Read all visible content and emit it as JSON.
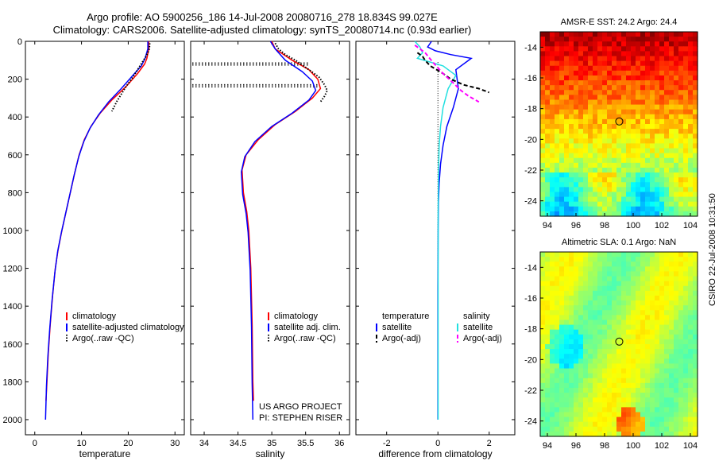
{
  "header": {
    "title_line1": "Argo profile: AO 5900256_186 14-Jul-2008 20080716_278 18.834S 99.027E",
    "title_line2": "Climatology: CARS2006. Satellite-adjusted climatology: synTS_20080714.nc (0.93d earlier)"
  },
  "stamp": "CSIRO 22-Jul-2008 10:31:50",
  "colors": {
    "climatology": "#ff0000",
    "satellite": "#0000ff",
    "argo": "#000000",
    "sal_satellite": "#22e0e0",
    "sal_argo": "#ff00ff"
  },
  "chart_data": [
    {
      "type": "line",
      "xlabel": "temperature",
      "ylabel": "",
      "xlim": [
        -2,
        32
      ],
      "ylim": [
        2080,
        0
      ],
      "xticks": [
        0,
        10,
        20,
        30
      ],
      "yticks": [
        0,
        200,
        400,
        600,
        800,
        1000,
        1200,
        1400,
        1600,
        1800,
        2000
      ],
      "legend": {
        "position": "lower-right",
        "entries": [
          "climatology",
          "satellite-adjusted climatology",
          "Argo(..raw -QC)"
        ]
      },
      "series": [
        {
          "name": "climatology",
          "color": "#ff0000",
          "style": "solid",
          "x": [
            24.4,
            24.4,
            24.0,
            23.5,
            22.0,
            19.5,
            16.5,
            14.0,
            12.0,
            10.6,
            9.5,
            8.5,
            7.6,
            6.7,
            5.8,
            5.0,
            4.4,
            3.8,
            3.3,
            2.9,
            2.6,
            2.4
          ],
          "y": [
            0,
            40,
            90,
            120,
            170,
            240,
            310,
            380,
            450,
            520,
            600,
            700,
            800,
            900,
            1000,
            1100,
            1200,
            1350,
            1500,
            1650,
            1800,
            1900
          ]
        },
        {
          "name": "satellite-adjusted climatology",
          "color": "#0000ff",
          "style": "solid",
          "x": [
            24.2,
            24.2,
            23.6,
            22.8,
            21.0,
            18.5,
            15.8,
            13.6,
            11.8,
            10.5,
            9.4,
            8.4,
            7.5,
            6.6,
            5.7,
            4.9,
            4.3,
            3.7,
            3.2,
            2.8,
            2.5,
            2.3
          ],
          "y": [
            0,
            40,
            90,
            130,
            180,
            250,
            320,
            390,
            460,
            530,
            610,
            710,
            810,
            910,
            1010,
            1110,
            1220,
            1370,
            1520,
            1670,
            1820,
            2000
          ]
        },
        {
          "name": "Argo(..raw -QC)",
          "color": "#000000",
          "style": "dotted",
          "x": [
            24.6,
            24.5,
            24.2,
            23.8,
            23.0,
            22.0,
            21.0,
            19.5,
            18.5,
            17.5,
            16.5
          ],
          "y": [
            10,
            40,
            60,
            80,
            110,
            150,
            190,
            240,
            280,
            320,
            370
          ]
        }
      ]
    },
    {
      "type": "line",
      "xlabel": "salinity",
      "xlim": [
        33.8,
        36.15
      ],
      "ylim": [
        2080,
        0
      ],
      "xticks": [
        34,
        34.5,
        35,
        35.5,
        36
      ],
      "yticks": [
        0,
        200,
        400,
        600,
        800,
        1000,
        1200,
        1400,
        1600,
        1800,
        2000
      ],
      "legend": {
        "position": "lower-right",
        "entries": [
          "climatology",
          "satellite adj. clim.",
          "Argo(..raw -QC)"
        ]
      },
      "annotation": [
        "US ARGO PROJECT",
        "PI: STEPHEN RISER"
      ],
      "series": [
        {
          "name": "climatology",
          "color": "#ff0000",
          "style": "solid",
          "x": [
            35.0,
            35.05,
            35.3,
            35.55,
            35.68,
            35.72,
            35.6,
            35.35,
            35.05,
            34.8,
            34.62,
            34.56,
            34.58,
            34.63,
            34.66,
            34.69,
            34.71,
            34.72,
            34.73
          ],
          "y": [
            0,
            40,
            100,
            150,
            200,
            250,
            300,
            370,
            440,
            520,
            600,
            680,
            800,
            900,
            1000,
            1200,
            1500,
            1800,
            1900
          ]
        },
        {
          "name": "satellite adj. clim.",
          "color": "#0000ff",
          "style": "solid",
          "x": [
            34.98,
            35.05,
            35.2,
            35.45,
            35.6,
            35.65,
            35.55,
            35.3,
            35.0,
            34.75,
            34.6,
            34.55,
            34.57,
            34.62,
            34.65,
            34.68,
            34.7,
            34.71,
            34.72
          ],
          "y": [
            0,
            40,
            100,
            160,
            210,
            260,
            310,
            380,
            450,
            530,
            610,
            690,
            810,
            910,
            1010,
            1210,
            1510,
            1810,
            2000
          ]
        },
        {
          "name": "Argo(..raw -QC)",
          "color": "#000000",
          "style": "dotted",
          "x": [
            35.05,
            35.1,
            35.2,
            35.35,
            35.55,
            35.7,
            35.78,
            35.82,
            35.78,
            35.72
          ],
          "y": [
            10,
            40,
            70,
            100,
            150,
            190,
            230,
            260,
            290,
            320
          ]
        }
      ],
      "qc_lines": [
        {
          "y": 120,
          "x": [
            33.8,
            35.55
          ]
        },
        {
          "y": 235,
          "x": [
            33.8,
            35.7
          ]
        }
      ]
    },
    {
      "type": "line",
      "xlabel": "difference from climatology",
      "xlim": [
        -3.2,
        3.0
      ],
      "ylim": [
        2080,
        0
      ],
      "xticks": [
        -2,
        0,
        2
      ],
      "yticks": [
        0,
        200,
        400,
        600,
        800,
        1000,
        1200,
        1400,
        1600,
        1800,
        2000
      ],
      "legend": {
        "position": "lower-center",
        "entries": [
          "temperature",
          "satellite",
          "Argo(-adj)",
          "salinity",
          "satellite",
          "Argo(-adj)"
        ]
      },
      "series": [
        {
          "name": "temperature satellite",
          "color": "#0000ff",
          "style": "solid",
          "x": [
            -0.25,
            -0.4,
            -0.1,
            0.5,
            1.3,
            0.7,
            0.8,
            0.6,
            0.35,
            0.2,
            0.1,
            0.05,
            0.02,
            0.01,
            0.0,
            0.0,
            0.0
          ],
          "y": [
            0,
            30,
            50,
            70,
            90,
            150,
            250,
            350,
            450,
            550,
            650,
            750,
            850,
            1000,
            1300,
            1600,
            2000
          ]
        },
        {
          "name": "salinity satellite",
          "color": "#22e0e0",
          "style": "solid",
          "x": [
            -0.9,
            -0.7,
            -0.6,
            -0.8,
            0.2,
            0.7,
            0.4,
            0.2,
            0.1,
            0.05,
            0.03,
            0.02,
            0.01,
            0.01,
            0.01,
            0.01
          ],
          "y": [
            0,
            30,
            60,
            90,
            130,
            180,
            250,
            350,
            450,
            550,
            650,
            750,
            900,
            1200,
            1600,
            2000
          ]
        },
        {
          "name": "Argo temperature",
          "color": "#000000",
          "style": "dashed",
          "x": [
            -0.8,
            -0.6,
            -0.5,
            -0.3,
            0.2,
            0.5,
            1.0,
            1.6,
            2.0
          ],
          "y": [
            60,
            80,
            100,
            130,
            170,
            200,
            230,
            250,
            270
          ]
        },
        {
          "name": "Argo salinity",
          "color": "#ff00ff",
          "style": "dashed",
          "x": [
            -0.9,
            -0.5,
            -0.2,
            0.2,
            0.6,
            0.9,
            1.2,
            1.6
          ],
          "y": [
            20,
            60,
            110,
            170,
            220,
            260,
            290,
            320
          ]
        }
      ]
    },
    {
      "type": "heatmap",
      "title": "AMSR-E SST: 24.2 Argo: 24.4",
      "xticks": [
        94,
        96,
        98,
        100,
        102,
        104
      ],
      "yticks": [
        -14,
        -16,
        -18,
        -20,
        -22,
        -24
      ],
      "xlim": [
        93.5,
        104.5
      ],
      "ylim": [
        -25,
        -13
      ],
      "marker": {
        "lon": 99.027,
        "lat": -18.834
      }
    },
    {
      "type": "heatmap",
      "title": "Altimetric SLA: 0.1 Argo: NaN",
      "xticks": [
        94,
        96,
        98,
        100,
        102,
        104
      ],
      "yticks": [
        -14,
        -16,
        -18,
        -20,
        -22,
        -24
      ],
      "xlim": [
        93.5,
        104.5
      ],
      "ylim": [
        -25,
        -13
      ],
      "marker": {
        "lon": 99.027,
        "lat": -18.834
      }
    }
  ]
}
